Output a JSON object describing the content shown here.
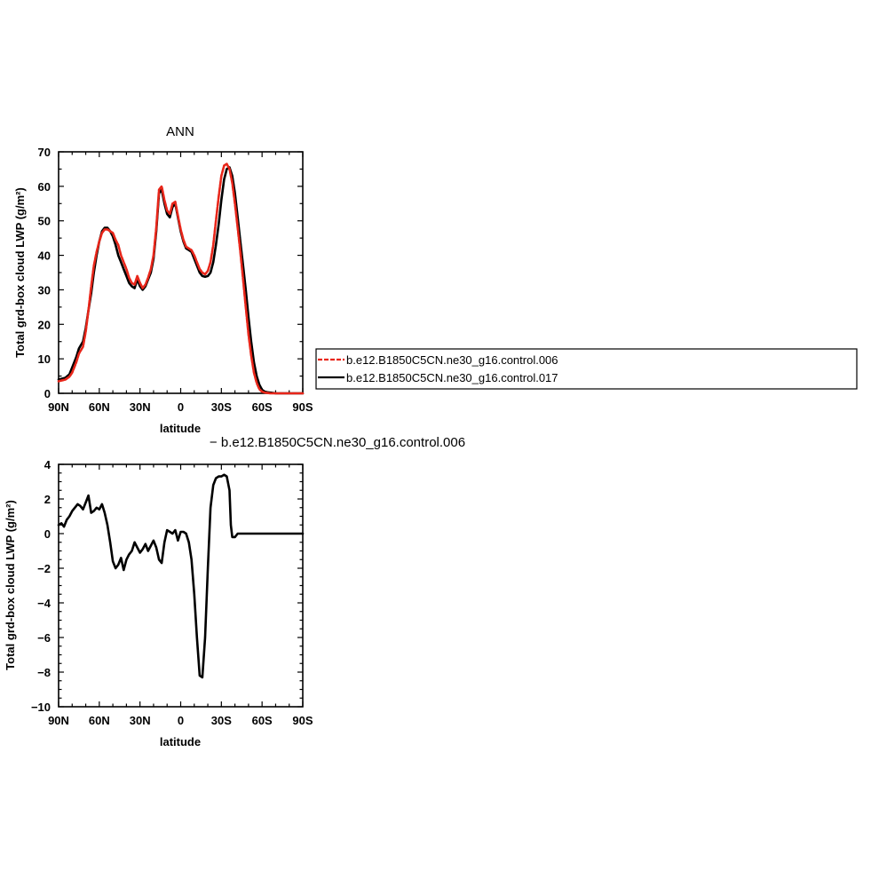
{
  "chart_data": [
    {
      "type": "line",
      "title": "ANN",
      "xlabel": "latitude",
      "ylabel": "Total grd-box cloud LWP (g/m²)",
      "xlim": [
        90,
        -90
      ],
      "ylim": [
        0,
        70
      ],
      "x_ticks": [
        {
          "value": 90,
          "label": "90N"
        },
        {
          "value": 60,
          "label": "60N"
        },
        {
          "value": 30,
          "label": "30N"
        },
        {
          "value": 0,
          "label": "0"
        },
        {
          "value": -30,
          "label": "30S"
        },
        {
          "value": -60,
          "label": "60S"
        },
        {
          "value": -90,
          "label": "90S"
        }
      ],
      "y_ticks": [
        0,
        10,
        20,
        30,
        40,
        50,
        60,
        70
      ],
      "series": [
        {
          "name": "b.e12.B1850C5CN.ne30_g16.control.017",
          "color": "#000000",
          "dash": "solid",
          "x": [
            90,
            85,
            82,
            80,
            77,
            75,
            72,
            70,
            68,
            66,
            64,
            62,
            60,
            58,
            56,
            54,
            52,
            50,
            48,
            46,
            44,
            42,
            40,
            38,
            36,
            34,
            32,
            30,
            28,
            26,
            24,
            22,
            20,
            18,
            16,
            14,
            12,
            10,
            8,
            6,
            4,
            2,
            0,
            -2,
            -4,
            -6,
            -8,
            -10,
            -12,
            -14,
            -16,
            -18,
            -20,
            -22,
            -24,
            -26,
            -28,
            -30,
            -32,
            -34,
            -36,
            -38,
            -40,
            -42,
            -44,
            -46,
            -48,
            -50,
            -52,
            -54,
            -56,
            -58,
            -60,
            -62,
            -64,
            -66,
            -68,
            -70,
            -72,
            -74,
            -76,
            -78,
            -80,
            -82,
            -85,
            -88,
            -90
          ],
          "y": [
            4,
            4.5,
            5.5,
            7.5,
            10.5,
            13,
            15,
            19,
            24,
            29,
            35,
            40,
            44,
            47,
            48,
            48,
            47,
            45.5,
            43,
            40,
            38,
            36,
            34,
            32,
            31,
            30.5,
            33,
            31,
            30,
            31,
            33,
            35,
            39,
            47,
            58,
            59,
            55,
            52,
            51,
            54,
            55,
            51,
            47,
            44,
            42,
            41.5,
            41,
            39,
            37,
            35,
            34,
            33.8,
            34,
            35,
            38,
            43,
            49,
            56,
            62,
            65,
            65.5,
            63,
            58,
            51,
            44,
            37,
            30,
            22,
            15,
            9,
            5,
            2.5,
            1,
            0.5,
            0.3,
            0.2,
            0.1,
            0,
            0,
            0,
            0,
            0,
            0,
            0,
            0,
            0,
            0
          ]
        },
        {
          "name": "b.e12.B1850C5CN.ne30_g16.control.006",
          "color": "#e8261a",
          "dash": "dashed",
          "x": [
            90,
            85,
            82,
            80,
            77,
            75,
            72,
            70,
            68,
            66,
            64,
            62,
            60,
            58,
            56,
            54,
            52,
            50,
            48,
            46,
            44,
            42,
            40,
            38,
            36,
            34,
            32,
            30,
            28,
            26,
            24,
            22,
            20,
            18,
            16,
            14,
            12,
            10,
            8,
            6,
            4,
            2,
            0,
            -2,
            -4,
            -6,
            -8,
            -10,
            -12,
            -14,
            -16,
            -18,
            -20,
            -22,
            -24,
            -26,
            -28,
            -30,
            -32,
            -34,
            -36,
            -38,
            -40,
            -42,
            -44,
            -46,
            -48,
            -50,
            -52,
            -54,
            -56,
            -58,
            -60,
            -62,
            -64,
            -66,
            -68,
            -70,
            -72,
            -74,
            -76,
            -78,
            -80,
            -82,
            -85,
            -88,
            -90
          ],
          "y": [
            3.5,
            4,
            4.8,
            6,
            9,
            11.5,
            13.5,
            18,
            24,
            31,
            37,
            41,
            44,
            46.5,
            47.5,
            47.5,
            47,
            46.5,
            44.5,
            43,
            40,
            38,
            36,
            33.5,
            32,
            31.5,
            34,
            32,
            30.5,
            31.5,
            33.5,
            36,
            40,
            48,
            59,
            60,
            56,
            53,
            52,
            55,
            55.5,
            51.5,
            47.5,
            44.5,
            42.5,
            42,
            41.5,
            40,
            38,
            36,
            35,
            34.5,
            35.5,
            38,
            43,
            50,
            57,
            63,
            66,
            66.5,
            65,
            61,
            55,
            48,
            41,
            33,
            25,
            17,
            11,
            6,
            3,
            1.2,
            0.5,
            0.2,
            0.1,
            0,
            0,
            0,
            0,
            0,
            0,
            0,
            0,
            0,
            0,
            0,
            0
          ]
        }
      ],
      "legend": {
        "placement": "right",
        "entries": [
          {
            "label": "b.e12.B1850C5CN.ne30_g16.control.006",
            "color": "#e8261a",
            "dash": "dashed"
          },
          {
            "label": "b.e12.B1850C5CN.ne30_g16.control.017",
            "color": "#000000",
            "dash": "solid"
          }
        ]
      }
    },
    {
      "type": "line",
      "title": "− b.e12.B1850C5CN.ne30_g16.control.006",
      "xlabel": "latitude",
      "ylabel": "Total grd-box cloud LWP (g/m²)",
      "xlim": [
        90,
        -90
      ],
      "ylim": [
        -10,
        4
      ],
      "x_ticks": [
        {
          "value": 90,
          "label": "90N"
        },
        {
          "value": 60,
          "label": "60N"
        },
        {
          "value": 30,
          "label": "30N"
        },
        {
          "value": 0,
          "label": "0"
        },
        {
          "value": -30,
          "label": "30S"
        },
        {
          "value": -60,
          "label": "60S"
        },
        {
          "value": -90,
          "label": "90S"
        }
      ],
      "y_ticks": [
        4,
        2,
        0,
        -2,
        -4,
        -6,
        -8,
        -10
      ],
      "series": [
        {
          "color": "#000000",
          "dash": "solid",
          "x": [
            90,
            88,
            86,
            84,
            82,
            80,
            78,
            76,
            74,
            72,
            70,
            68,
            66,
            64,
            62,
            60,
            58,
            56,
            54,
            52,
            50,
            48,
            46,
            44,
            42,
            40,
            38,
            36,
            34,
            32,
            30,
            28,
            26,
            24,
            22,
            20,
            18,
            16,
            14,
            12,
            10,
            8,
            6,
            4,
            2,
            0,
            -2,
            -4,
            -6,
            -8,
            -10,
            -12,
            -14,
            -16,
            -18,
            -20,
            -22,
            -24,
            -26,
            -28,
            -30,
            -32,
            -34,
            -36,
            -37,
            -38,
            -40,
            -42,
            -44,
            -46,
            -48,
            -50,
            -52,
            -54,
            -56,
            -58,
            -60,
            -62,
            -64,
            -66,
            -68,
            -70,
            -72,
            -74,
            -76,
            -78,
            -80,
            -84,
            -90
          ],
          "y": [
            0.5,
            0.6,
            0.4,
            0.8,
            1.0,
            1.3,
            1.5,
            1.7,
            1.6,
            1.4,
            1.8,
            2.2,
            1.2,
            1.3,
            1.5,
            1.4,
            1.7,
            1.2,
            0.5,
            -0.5,
            -1.6,
            -2.0,
            -1.8,
            -1.4,
            -2.1,
            -1.5,
            -1.2,
            -1.0,
            -0.5,
            -0.8,
            -1.1,
            -0.9,
            -0.6,
            -1.0,
            -0.7,
            -0.4,
            -0.8,
            -1.5,
            -1.7,
            -0.5,
            0.2,
            0.1,
            0.0,
            0.2,
            -0.4,
            0.1,
            0.1,
            0.0,
            -0.5,
            -1.5,
            -3.5,
            -6.0,
            -8.2,
            -8.3,
            -6.0,
            -2.0,
            1.5,
            2.8,
            3.2,
            3.3,
            3.3,
            3.4,
            3.3,
            2.5,
            0.5,
            -0.2,
            -0.2,
            0.0,
            0.0,
            0.0,
            0.0,
            0.0,
            0.0,
            0.0,
            0.0,
            0.0,
            0.0,
            0.0,
            0.0,
            0.0,
            0.0,
            0.0,
            0.0,
            0.0,
            0.0,
            0.0,
            0.0,
            0.0,
            0.0
          ]
        }
      ]
    }
  ]
}
